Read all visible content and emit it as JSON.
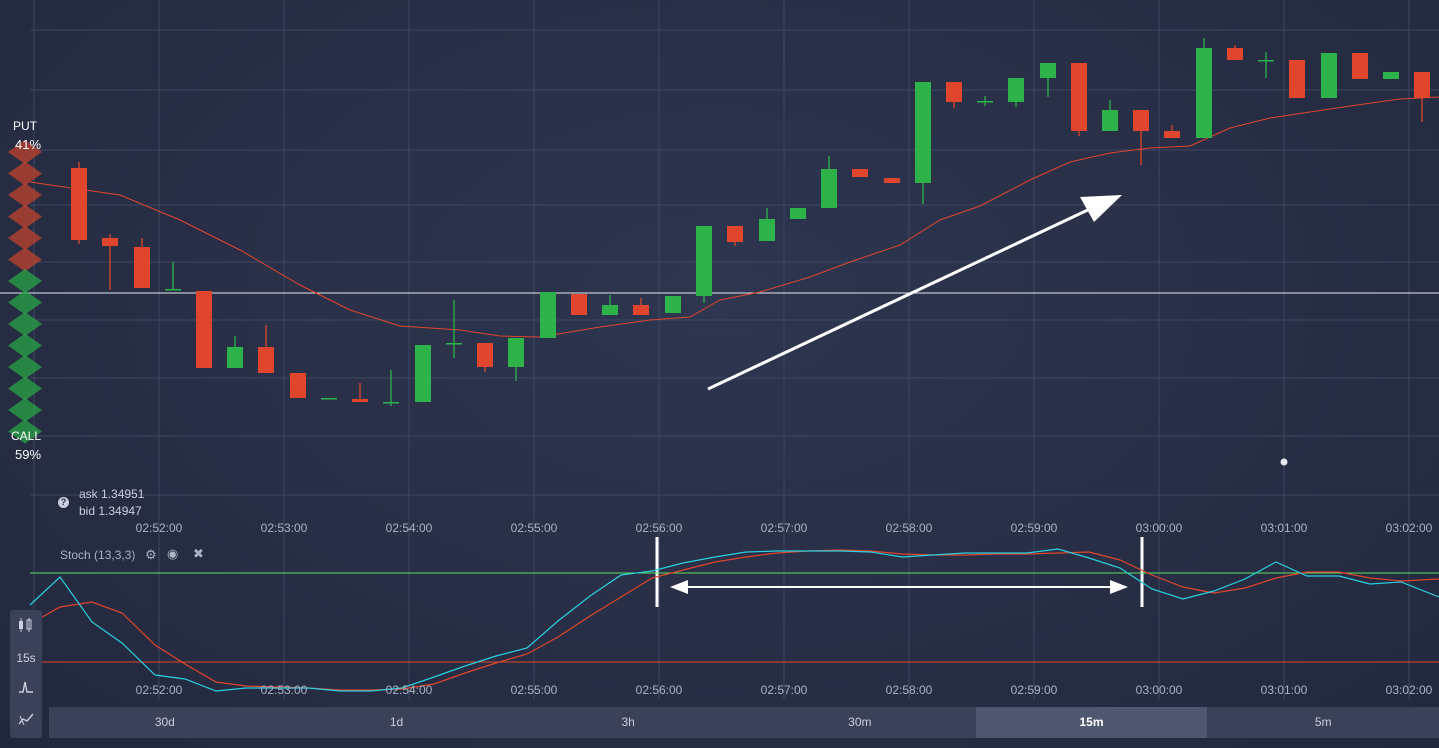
{
  "sentiment": {
    "put_label": "PUT",
    "put_pct": "41%",
    "call_label": "CALL",
    "call_pct": "59%",
    "put_share": 0.41,
    "call_share": 0.59
  },
  "quote": {
    "ask": "ask 1.34951",
    "bid": "bid 1.34947"
  },
  "time_axis": [
    "02:52:00",
    "02:53:00",
    "02:54:00",
    "02:55:00",
    "02:56:00",
    "02:57:00",
    "02:58:00",
    "02:59:00",
    "03:00:00",
    "03:01:00",
    "03:02:00"
  ],
  "indicator": {
    "label": "Stoch (13,3,3)",
    "settings_icon": "gear-icon",
    "visibility_icon": "eye-icon",
    "remove_icon": "close-icon"
  },
  "toolbar": {
    "chart_type_icon": "candles-icon",
    "interval_label": "15s",
    "indicators_icon": "indicator-icon",
    "drawings_icon": "drawing-icon"
  },
  "periods": [
    {
      "label": "30d",
      "active": false
    },
    {
      "label": "1d",
      "active": false
    },
    {
      "label": "3h",
      "active": false
    },
    {
      "label": "30m",
      "active": false
    },
    {
      "label": "15m",
      "active": true
    },
    {
      "label": "5m",
      "active": false
    }
  ],
  "colors": {
    "up": "#2db34a",
    "down": "#e0462e",
    "ma_line": "#e0462e",
    "stoch_k": "#2ad0e0",
    "stoch_d": "#e0462e",
    "upper_band": "#5de05d",
    "lower_band": "#e0462e",
    "background": "#2a3148"
  }
}
